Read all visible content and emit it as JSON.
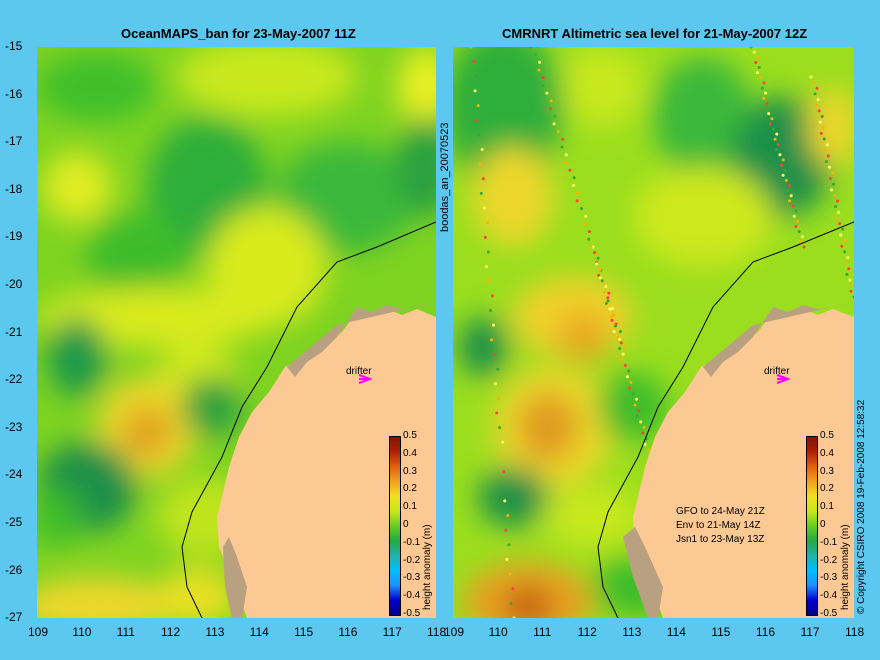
{
  "left_title": "OceanMAPS_ban for 23-May-2007 11Z",
  "right_title": "CMRNRT Altimetric sea level  for 21-May-2007 12Z",
  "lat_labels": [
    "-15",
    "-16",
    "-17",
    "-18",
    "-19",
    "-20",
    "-21",
    "-22",
    "-23",
    "-24",
    "-25",
    "-26",
    "-27"
  ],
  "left_lon_labels": [
    "109",
    "110",
    "111",
    "112",
    "113",
    "114",
    "115",
    "116",
    "117",
    "118"
  ],
  "right_lon_labels": [
    "109",
    "110",
    "111",
    "112",
    "113",
    "114",
    "115",
    "116",
    "117",
    "118"
  ],
  "left_side_label": "boodas_an_20070523",
  "drifter_label": "drifter",
  "colorbar_ticks": [
    "0.5",
    "0.4",
    "0.3",
    "0.2",
    "0.1",
    "0",
    "-0.1",
    "-0.2",
    "-0.3",
    "-0.4",
    "-0.5"
  ],
  "colorbar_label": "height anomaly (m)",
  "altimeter_notes": [
    "GFO to 24-May 21Z",
    "Env to 21-May 14Z",
    "Jsn1 to 23-May 13Z"
  ],
  "copyright": "© Copyright CSIRO 2008  19-Feb-2008 12:58:32",
  "colors": {
    "background": "#5cc8f0",
    "land": "#fcc894",
    "drifter": "#ff00ff"
  }
}
